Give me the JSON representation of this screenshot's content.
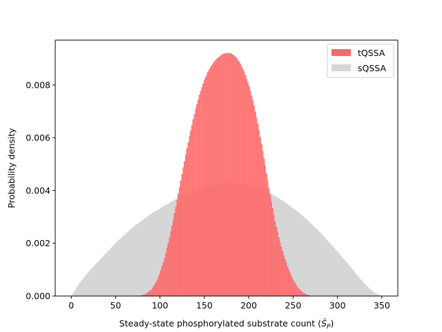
{
  "chart_data": {
    "type": "histogram",
    "title": "",
    "xlabel": "Steady-state phosphorylated substrate count (Ŝ_P)",
    "xlabel_parts": {
      "text": "Steady-state phosphorylated substrate count (",
      "symbol": "Ŝ",
      "subscript": "P",
      "close": ")"
    },
    "ylabel": "Probability density",
    "xlim": [
      -18,
      368
    ],
    "ylim": [
      0,
      0.0097
    ],
    "xticks": [
      0,
      50,
      100,
      150,
      200,
      250,
      300,
      350
    ],
    "xtick_labels": [
      "0",
      "50",
      "100",
      "150",
      "200",
      "250",
      "300",
      "350"
    ],
    "yticks": [
      0,
      0.002,
      0.004,
      0.006,
      0.008
    ],
    "ytick_labels": [
      "0.000",
      "0.002",
      "0.004",
      "0.006",
      "0.008"
    ],
    "grid": false,
    "legend_position": "top-right",
    "series": [
      {
        "name": "sQSSA",
        "color": "#d6d6d6",
        "x": [
          0,
          10,
          20,
          30,
          40,
          50,
          60,
          70,
          80,
          90,
          100,
          110,
          120,
          130,
          140,
          150,
          160,
          170,
          175,
          180,
          190,
          200,
          210,
          220,
          230,
          240,
          250,
          260,
          270,
          280,
          290,
          300,
          310,
          320,
          330,
          340,
          350
        ],
        "density": [
          0,
          0.00052,
          0.00094,
          0.0013,
          0.00165,
          0.00202,
          0.00232,
          0.00262,
          0.00287,
          0.00312,
          0.00332,
          0.00352,
          0.00372,
          0.00389,
          0.00403,
          0.00414,
          0.00422,
          0.00427,
          0.00428,
          0.00428,
          0.00426,
          0.0042,
          0.0041,
          0.00396,
          0.00379,
          0.00357,
          0.00333,
          0.00306,
          0.00275,
          0.00242,
          0.00205,
          0.00168,
          0.00128,
          0.00088,
          0.00048,
          0.00016,
          0
        ]
      },
      {
        "name": "tQSSA",
        "color": "#ff6666",
        "x": [
          75,
          80,
          85,
          90,
          95,
          100,
          105,
          110,
          115,
          120,
          125,
          130,
          135,
          140,
          145,
          150,
          155,
          160,
          165,
          170,
          175,
          180,
          185,
          190,
          195,
          200,
          205,
          210,
          215,
          220,
          225,
          230,
          235,
          240,
          245,
          250,
          255,
          260,
          265,
          270,
          275
        ],
        "density": [
          0,
          3e-05,
          0.0001,
          0.00024,
          0.00049,
          0.00089,
          0.00143,
          0.00212,
          0.00292,
          0.0038,
          0.00468,
          0.00555,
          0.00636,
          0.00709,
          0.00771,
          0.0082,
          0.00857,
          0.00884,
          0.00903,
          0.00916,
          0.00922,
          0.0092,
          0.00908,
          0.00884,
          0.00848,
          0.008,
          0.00736,
          0.00656,
          0.00564,
          0.00463,
          0.00366,
          0.00278,
          0.00207,
          0.00149,
          0.00101,
          0.00061,
          0.00034,
          0.00016,
          6e-05,
          2e-05,
          0
        ]
      }
    ]
  }
}
